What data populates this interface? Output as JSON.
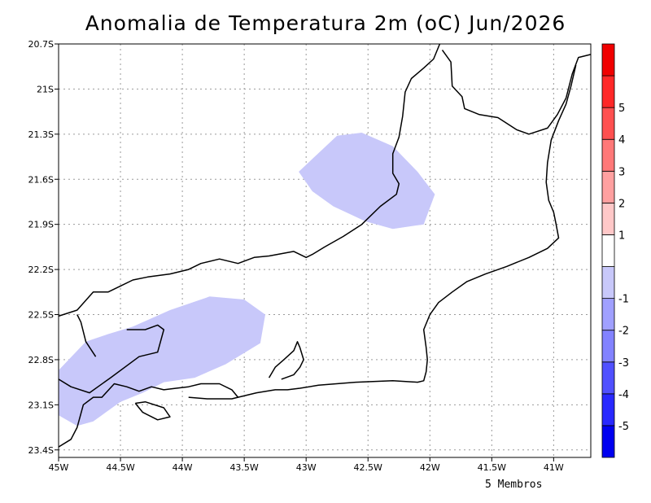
{
  "title": "Anomalia de Temperatura 2m (oC) Jun/2026",
  "footer": "5 Membros",
  "map": {
    "lon_range": [
      -45.0,
      -40.7
    ],
    "lat_range": [
      -23.45,
      -20.7
    ],
    "lon_ticks": [
      {
        "value": -45.0,
        "label": "45W"
      },
      {
        "value": -44.5,
        "label": "44.5W"
      },
      {
        "value": -44.0,
        "label": "44W"
      },
      {
        "value": -43.5,
        "label": "43.5W"
      },
      {
        "value": -43.0,
        "label": "43W"
      },
      {
        "value": -42.5,
        "label": "42.5W"
      },
      {
        "value": -42.0,
        "label": "42W"
      },
      {
        "value": -41.5,
        "label": "41.5W"
      },
      {
        "value": -41.0,
        "label": "41W"
      }
    ],
    "lat_ticks": [
      {
        "value": -20.7,
        "label": "20.7S"
      },
      {
        "value": -21.0,
        "label": "21S"
      },
      {
        "value": -21.3,
        "label": "21.3S"
      },
      {
        "value": -21.6,
        "label": "21.6S"
      },
      {
        "value": -21.9,
        "label": "21.9S"
      },
      {
        "value": -22.2,
        "label": "22.2S"
      },
      {
        "value": -22.5,
        "label": "22.5S"
      },
      {
        "value": -22.8,
        "label": "22.8S"
      },
      {
        "value": -23.1,
        "label": "23.1S"
      },
      {
        "value": -23.4,
        "label": "23.4S"
      }
    ],
    "grid": "dotted",
    "shaded_regions": [
      {
        "name": "north-anomaly-region",
        "category": "-1 to 0",
        "color": "#c8c8fa",
        "points": [
          [
            -43.06,
            -21.55
          ],
          [
            -42.75,
            -21.31
          ],
          [
            -42.55,
            -21.29
          ],
          [
            -42.3,
            -21.38
          ],
          [
            -42.1,
            -21.55
          ],
          [
            -41.96,
            -21.7
          ],
          [
            -42.05,
            -21.9
          ],
          [
            -42.3,
            -21.93
          ],
          [
            -42.52,
            -21.88
          ],
          [
            -42.78,
            -21.78
          ],
          [
            -42.95,
            -21.68
          ]
        ]
      },
      {
        "name": "south-anomaly-region",
        "category": "-1 to 0",
        "color": "#c8c8fa",
        "points": [
          [
            -45.0,
            -22.87
          ],
          [
            -44.78,
            -22.68
          ],
          [
            -44.6,
            -22.63
          ],
          [
            -44.4,
            -22.58
          ],
          [
            -44.1,
            -22.47
          ],
          [
            -43.78,
            -22.38
          ],
          [
            -43.5,
            -22.4
          ],
          [
            -43.33,
            -22.5
          ],
          [
            -43.37,
            -22.69
          ],
          [
            -43.65,
            -22.83
          ],
          [
            -43.9,
            -22.92
          ],
          [
            -44.15,
            -22.95
          ],
          [
            -44.32,
            -23.02
          ],
          [
            -44.5,
            -23.08
          ],
          [
            -44.72,
            -23.21
          ],
          [
            -44.85,
            -23.24
          ],
          [
            -45.0,
            -23.17
          ]
        ]
      }
    ],
    "boundary_lines": [
      {
        "name": "state-border-line",
        "points": [
          [
            -45.0,
            -22.51
          ],
          [
            -44.85,
            -22.47
          ],
          [
            -44.72,
            -22.35
          ],
          [
            -44.6,
            -22.35
          ],
          [
            -44.5,
            -22.31
          ],
          [
            -44.4,
            -22.27
          ],
          [
            -44.28,
            -22.25
          ],
          [
            -44.1,
            -22.23
          ],
          [
            -43.95,
            -22.2
          ],
          [
            -43.85,
            -22.16
          ],
          [
            -43.7,
            -22.13
          ],
          [
            -43.55,
            -22.16
          ],
          [
            -43.42,
            -22.12
          ],
          [
            -43.3,
            -22.11
          ],
          [
            -43.1,
            -22.08
          ],
          [
            -43.0,
            -22.12
          ],
          [
            -42.95,
            -22.1
          ],
          [
            -42.85,
            -22.05
          ],
          [
            -42.7,
            -21.98
          ],
          [
            -42.55,
            -21.9
          ],
          [
            -42.4,
            -21.78
          ],
          [
            -42.27,
            -21.7
          ],
          [
            -42.25,
            -21.63
          ],
          [
            -42.3,
            -21.56
          ],
          [
            -42.3,
            -21.43
          ],
          [
            -42.25,
            -21.32
          ],
          [
            -42.22,
            -21.18
          ],
          [
            -42.2,
            -21.02
          ],
          [
            -42.15,
            -20.93
          ],
          [
            -42.05,
            -20.86
          ],
          [
            -41.97,
            -20.8
          ],
          [
            -41.92,
            -20.7
          ]
        ]
      },
      {
        "name": "state-border-line",
        "points": [
          [
            -41.9,
            -20.74
          ],
          [
            -41.83,
            -20.82
          ],
          [
            -41.82,
            -20.98
          ],
          [
            -41.74,
            -21.05
          ],
          [
            -41.72,
            -21.13
          ],
          [
            -41.6,
            -21.17
          ],
          [
            -41.45,
            -21.19
          ],
          [
            -41.3,
            -21.27
          ],
          [
            -41.2,
            -21.3
          ],
          [
            -41.05,
            -21.26
          ],
          [
            -40.97,
            -21.17
          ],
          [
            -40.9,
            -21.06
          ],
          [
            -40.85,
            -20.9
          ],
          [
            -40.8,
            -20.79
          ],
          [
            -40.7,
            -20.77
          ]
        ]
      },
      {
        "name": "coastline",
        "points": [
          [
            -40.82,
            -20.84
          ],
          [
            -40.86,
            -20.98
          ],
          [
            -40.9,
            -21.1
          ],
          [
            -40.96,
            -21.21
          ],
          [
            -41.02,
            -21.34
          ],
          [
            -41.05,
            -21.49
          ],
          [
            -41.06,
            -21.62
          ],
          [
            -41.04,
            -21.74
          ],
          [
            -41.0,
            -21.82
          ],
          [
            -40.98,
            -21.9
          ],
          [
            -40.96,
            -21.99
          ],
          [
            -41.05,
            -22.06
          ],
          [
            -41.2,
            -22.12
          ],
          [
            -41.38,
            -22.18
          ],
          [
            -41.55,
            -22.23
          ],
          [
            -41.7,
            -22.28
          ],
          [
            -41.82,
            -22.35
          ],
          [
            -41.93,
            -22.42
          ],
          [
            -42.0,
            -22.5
          ],
          [
            -42.05,
            -22.6
          ],
          [
            -42.03,
            -22.72
          ],
          [
            -42.02,
            -22.8
          ],
          [
            -42.03,
            -22.88
          ],
          [
            -42.05,
            -22.94
          ],
          [
            -42.1,
            -22.95
          ],
          [
            -42.3,
            -22.94
          ],
          [
            -42.6,
            -22.95
          ],
          [
            -42.9,
            -22.97
          ],
          [
            -43.05,
            -22.99
          ],
          [
            -43.15,
            -23.0
          ],
          [
            -43.25,
            -23.0
          ],
          [
            -43.4,
            -23.02
          ],
          [
            -43.55,
            -23.05
          ],
          [
            -43.6,
            -23.0
          ],
          [
            -43.7,
            -22.96
          ],
          [
            -43.85,
            -22.96
          ],
          [
            -43.95,
            -22.98
          ],
          [
            -44.05,
            -22.99
          ],
          [
            -44.15,
            -23.0
          ],
          [
            -44.25,
            -22.98
          ],
          [
            -44.35,
            -23.01
          ],
          [
            -44.45,
            -22.98
          ],
          [
            -44.55,
            -22.96
          ],
          [
            -44.65,
            -23.05
          ],
          [
            -44.72,
            -23.05
          ],
          [
            -44.8,
            -23.1
          ],
          [
            -44.85,
            -23.25
          ],
          [
            -44.9,
            -23.33
          ],
          [
            -45.0,
            -23.38
          ]
        ]
      },
      {
        "name": "coastline",
        "points": [
          [
            -43.95,
            -23.05
          ],
          [
            -43.8,
            -23.06
          ],
          [
            -43.6,
            -23.06
          ],
          [
            -43.55,
            -23.05
          ]
        ]
      },
      {
        "name": "ilha-grande-outline",
        "points": [
          [
            -44.38,
            -23.09
          ],
          [
            -44.3,
            -23.08
          ],
          [
            -44.15,
            -23.12
          ],
          [
            -44.1,
            -23.18
          ],
          [
            -44.2,
            -23.2
          ],
          [
            -44.32,
            -23.15
          ],
          [
            -44.38,
            -23.09
          ]
        ]
      },
      {
        "name": "municipal-border-line",
        "points": [
          [
            -45.0,
            -22.93
          ],
          [
            -44.9,
            -22.98
          ],
          [
            -44.75,
            -23.02
          ],
          [
            -44.58,
            -22.92
          ],
          [
            -44.35,
            -22.78
          ],
          [
            -44.2,
            -22.75
          ],
          [
            -44.15,
            -22.6
          ],
          [
            -44.2,
            -22.57
          ],
          [
            -44.3,
            -22.6
          ],
          [
            -44.45,
            -22.6
          ]
        ]
      },
      {
        "name": "municipal-border-line",
        "points": [
          [
            -44.7,
            -22.78
          ],
          [
            -44.78,
            -22.68
          ],
          [
            -44.82,
            -22.55
          ],
          [
            -44.85,
            -22.5
          ]
        ]
      },
      {
        "name": "guanabara-bay-outline",
        "points": [
          [
            -43.3,
            -22.92
          ],
          [
            -43.25,
            -22.85
          ],
          [
            -43.18,
            -22.8
          ],
          [
            -43.1,
            -22.74
          ],
          [
            -43.07,
            -22.68
          ],
          [
            -43.05,
            -22.72
          ],
          [
            -43.02,
            -22.8
          ],
          [
            -43.05,
            -22.85
          ],
          [
            -43.1,
            -22.9
          ],
          [
            -43.2,
            -22.93
          ]
        ]
      }
    ]
  },
  "colorbar": {
    "segments": [
      {
        "color": "#0000f0"
      },
      {
        "color": "#2828ff"
      },
      {
        "color": "#5050ff"
      },
      {
        "color": "#8282ff"
      },
      {
        "color": "#a0a0ff"
      },
      {
        "color": "#c8c8fa"
      },
      {
        "color": "#ffffff"
      },
      {
        "color": "#ffc8c8"
      },
      {
        "color": "#ffa0a0"
      },
      {
        "color": "#ff7878"
      },
      {
        "color": "#ff5050"
      },
      {
        "color": "#ff2828"
      },
      {
        "color": "#f00000"
      }
    ],
    "labels": [
      "-5",
      "-4",
      "-3",
      "-2",
      "-1",
      "1",
      "2",
      "3",
      "4",
      "5"
    ]
  }
}
